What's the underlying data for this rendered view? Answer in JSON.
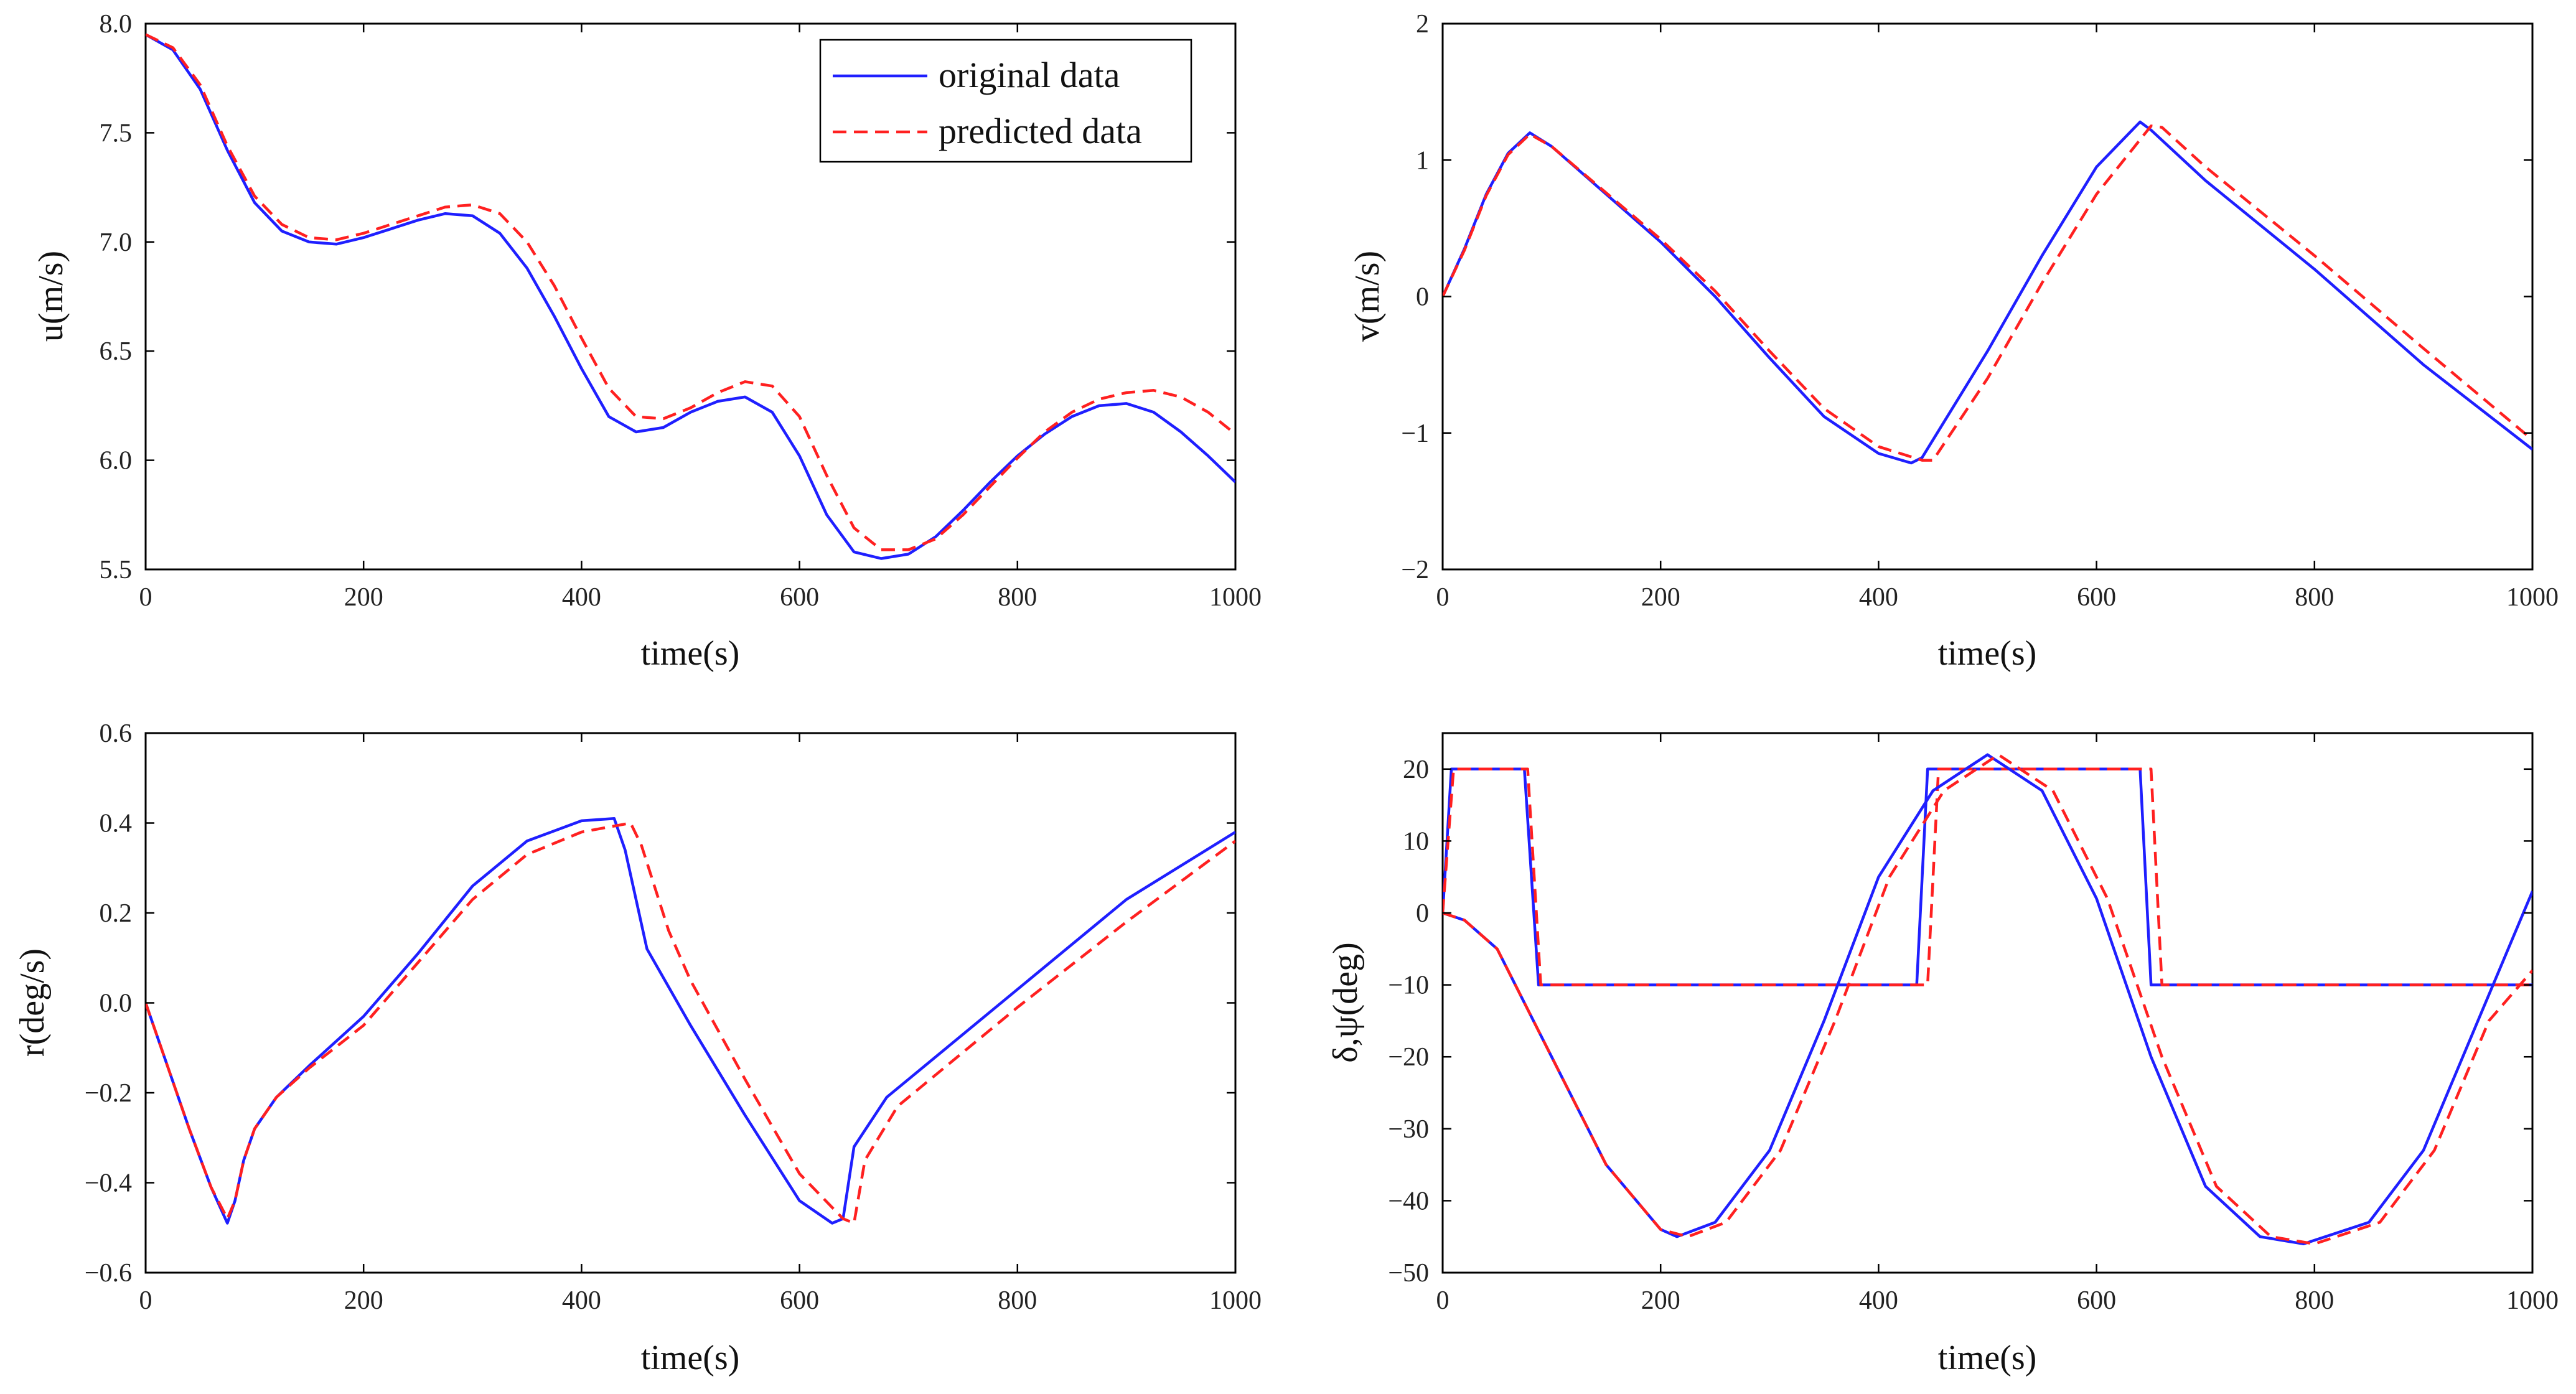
{
  "chart_data": [
    {
      "type": "line",
      "ylabel": "u(m/s)",
      "xlabel": "time(s)",
      "xlim": [
        0,
        1000
      ],
      "ylim": [
        5.5,
        8.0
      ],
      "xticks": [
        0,
        200,
        400,
        600,
        800,
        1000
      ],
      "xtick_labels": [
        "0",
        "200",
        "400",
        "600",
        "800",
        "1000"
      ],
      "yticks": [
        5.5,
        6.0,
        6.5,
        7.0,
        7.5,
        8.0
      ],
      "ytick_labels": [
        "5.5",
        "6.0",
        "6.5",
        "7.0",
        "7.5",
        "8.0"
      ],
      "legend": [
        "original data",
        "predicted data"
      ],
      "legend_position": "top-right",
      "grid": true,
      "series": [
        {
          "name": "original data",
          "style": "solid",
          "color": "#1f1fff",
          "x": [
            0,
            25,
            50,
            75,
            100,
            125,
            150,
            175,
            200,
            225,
            250,
            275,
            300,
            325,
            350,
            375,
            400,
            425,
            450,
            475,
            500,
            525,
            550,
            575,
            600,
            625,
            650,
            675,
            700,
            725,
            750,
            775,
            800,
            825,
            850,
            875,
            900,
            925,
            950,
            975,
            1000
          ],
          "y": [
            7.95,
            7.88,
            7.7,
            7.42,
            7.18,
            7.05,
            7.0,
            6.99,
            7.02,
            7.06,
            7.1,
            7.13,
            7.12,
            7.04,
            6.88,
            6.66,
            6.42,
            6.2,
            6.13,
            6.15,
            6.22,
            6.27,
            6.29,
            6.22,
            6.02,
            5.75,
            5.58,
            5.55,
            5.57,
            5.65,
            5.77,
            5.9,
            6.02,
            6.12,
            6.2,
            6.25,
            6.26,
            6.22,
            6.13,
            6.02,
            5.9
          ]
        },
        {
          "name": "predicted data",
          "style": "dashed",
          "color": "#ff2020",
          "x": [
            0,
            25,
            50,
            75,
            100,
            125,
            150,
            175,
            200,
            225,
            250,
            275,
            300,
            325,
            350,
            375,
            400,
            425,
            450,
            475,
            500,
            525,
            550,
            575,
            600,
            625,
            650,
            675,
            700,
            725,
            750,
            775,
            800,
            825,
            850,
            875,
            900,
            925,
            950,
            975,
            1000
          ],
          "y": [
            7.95,
            7.89,
            7.72,
            7.44,
            7.21,
            7.08,
            7.02,
            7.01,
            7.04,
            7.08,
            7.12,
            7.16,
            7.17,
            7.13,
            7.0,
            6.8,
            6.56,
            6.33,
            6.2,
            6.19,
            6.24,
            6.31,
            6.36,
            6.34,
            6.2,
            5.93,
            5.69,
            5.59,
            5.59,
            5.64,
            5.75,
            5.88,
            6.01,
            6.13,
            6.22,
            6.28,
            6.31,
            6.32,
            6.29,
            6.22,
            6.12
          ]
        }
      ]
    },
    {
      "type": "line",
      "ylabel": "v(m/s)",
      "xlabel": "time(s)",
      "xlim": [
        0,
        1000
      ],
      "ylim": [
        -2,
        2
      ],
      "xticks": [
        0,
        200,
        400,
        600,
        800,
        1000
      ],
      "xtick_labels": [
        "0",
        "200",
        "400",
        "600",
        "800",
        "1000"
      ],
      "yticks": [
        -2,
        -1,
        0,
        1,
        2
      ],
      "ytick_labels": [
        "−2",
        "−1",
        "0",
        "1",
        "2"
      ],
      "grid": true,
      "series": [
        {
          "name": "original data",
          "style": "solid",
          "color": "#1f1fff",
          "x": [
            0,
            20,
            40,
            60,
            80,
            100,
            150,
            200,
            250,
            300,
            350,
            400,
            430,
            440,
            500,
            550,
            600,
            640,
            650,
            700,
            800,
            900,
            1000
          ],
          "y": [
            0,
            0.35,
            0.75,
            1.05,
            1.2,
            1.1,
            0.75,
            0.4,
            0.0,
            -0.45,
            -0.88,
            -1.15,
            -1.22,
            -1.18,
            -0.4,
            0.3,
            0.95,
            1.28,
            1.22,
            0.85,
            0.2,
            -0.5,
            -1.12
          ]
        },
        {
          "name": "predicted data",
          "style": "dashed",
          "color": "#ff2020",
          "x": [
            0,
            20,
            40,
            60,
            80,
            100,
            150,
            200,
            250,
            300,
            350,
            400,
            440,
            450,
            500,
            550,
            600,
            650,
            660,
            700,
            800,
            900,
            1000
          ],
          "y": [
            0,
            0.34,
            0.74,
            1.04,
            1.19,
            1.1,
            0.76,
            0.42,
            0.04,
            -0.4,
            -0.82,
            -1.1,
            -1.2,
            -1.2,
            -0.6,
            0.1,
            0.75,
            1.25,
            1.24,
            0.95,
            0.3,
            -0.38,
            -1.05
          ]
        }
      ]
    },
    {
      "type": "line",
      "ylabel": "r(deg/s)",
      "xlabel": "time(s)",
      "xlim": [
        0,
        1000
      ],
      "ylim": [
        -0.6,
        0.6
      ],
      "xticks": [
        0,
        200,
        400,
        600,
        800,
        1000
      ],
      "xtick_labels": [
        "0",
        "200",
        "400",
        "600",
        "800",
        "1000"
      ],
      "yticks": [
        -0.6,
        -0.4,
        -0.2,
        0.0,
        0.2,
        0.4,
        0.6
      ],
      "ytick_labels": [
        "−0.6",
        "−0.4",
        "−0.2",
        "0.0",
        "0.2",
        "0.4",
        "0.6"
      ],
      "grid": true,
      "series": [
        {
          "name": "original data",
          "style": "solid",
          "color": "#1f1fff",
          "x": [
            0,
            20,
            40,
            60,
            75,
            82,
            90,
            100,
            120,
            150,
            200,
            250,
            300,
            350,
            400,
            430,
            440,
            460,
            500,
            550,
            600,
            630,
            640,
            650,
            680,
            700,
            800,
            900,
            1000
          ],
          "y": [
            0,
            -0.14,
            -0.28,
            -0.41,
            -0.49,
            -0.44,
            -0.35,
            -0.28,
            -0.21,
            -0.14,
            -0.03,
            0.11,
            0.26,
            0.36,
            0.405,
            0.41,
            0.34,
            0.12,
            -0.05,
            -0.25,
            -0.44,
            -0.49,
            -0.48,
            -0.32,
            -0.21,
            -0.17,
            0.03,
            0.23,
            0.38
          ]
        },
        {
          "name": "predicted data",
          "style": "dashed",
          "color": "#ff2020",
          "x": [
            0,
            20,
            40,
            60,
            75,
            82,
            90,
            100,
            120,
            150,
            200,
            250,
            300,
            350,
            400,
            445,
            455,
            480,
            500,
            550,
            600,
            640,
            650,
            660,
            690,
            710,
            800,
            900,
            1000
          ],
          "y": [
            0,
            -0.14,
            -0.28,
            -0.41,
            -0.48,
            -0.44,
            -0.35,
            -0.28,
            -0.21,
            -0.145,
            -0.05,
            0.09,
            0.23,
            0.33,
            0.38,
            0.4,
            0.35,
            0.16,
            0.05,
            -0.17,
            -0.38,
            -0.48,
            -0.49,
            -0.35,
            -0.23,
            -0.19,
            -0.01,
            0.18,
            0.36
          ]
        }
      ]
    },
    {
      "type": "line",
      "ylabel": "δ,ψ(deg)",
      "xlabel": "time(s)",
      "xlim": [
        0,
        1000
      ],
      "ylim": [
        -50,
        25
      ],
      "xticks": [
        0,
        200,
        400,
        600,
        800,
        1000
      ],
      "xtick_labels": [
        "0",
        "200",
        "400",
        "600",
        "800",
        "1000"
      ],
      "yticks": [
        -50,
        -40,
        -30,
        -20,
        -10,
        0,
        10,
        20
      ],
      "ytick_labels": [
        "−50",
        "−40",
        "−30",
        "−20",
        "−10",
        "0",
        "10",
        "20"
      ],
      "grid": true,
      "series": [
        {
          "name": "original data",
          "style": "solid",
          "color": "#1f1fff",
          "x": [
            0,
            8,
            75,
            88,
            435,
            445,
            640,
            650,
            1000
          ],
          "y": [
            0,
            20,
            20,
            -10,
            -10,
            20,
            20,
            -10,
            -10
          ]
        },
        {
          "name": "predicted data",
          "style": "dashed",
          "color": "#ff2020",
          "x": [
            0,
            10,
            78,
            90,
            445,
            455,
            650,
            660,
            1000
          ],
          "y": [
            0,
            20,
            20,
            -10,
            -10,
            20,
            20,
            -10,
            -10
          ]
        },
        {
          "name": "original data",
          "style": "solid",
          "color": "#1f1fff",
          "x": [
            0,
            20,
            50,
            100,
            150,
            200,
            215,
            250,
            300,
            350,
            400,
            450,
            500,
            550,
            600,
            650,
            700,
            750,
            790,
            850,
            900,
            950,
            1000
          ],
          "y": [
            0,
            -1,
            -5,
            -20,
            -35,
            -44,
            -45,
            -43,
            -33,
            -15,
            5,
            17,
            22,
            17,
            2,
            -20,
            -38,
            -45,
            -46,
            -43,
            -33,
            -15,
            3
          ]
        },
        {
          "name": "predicted data",
          "style": "dashed",
          "color": "#ff2020",
          "x": [
            0,
            20,
            50,
            100,
            150,
            200,
            225,
            260,
            310,
            360,
            410,
            460,
            510,
            560,
            610,
            660,
            710,
            760,
            800,
            860,
            910,
            960,
            1000
          ],
          "y": [
            0,
            -1,
            -5,
            -20,
            -35,
            -44,
            -45,
            -43,
            -33,
            -15,
            5,
            17,
            22,
            17,
            2,
            -20,
            -38,
            -45,
            -46,
            -43,
            -33,
            -15,
            -8
          ]
        }
      ]
    }
  ],
  "legend_labels": {
    "original": "original data",
    "predicted": "predicted data"
  },
  "colors": {
    "original": "#1f1fff",
    "predicted": "#ff2020"
  }
}
